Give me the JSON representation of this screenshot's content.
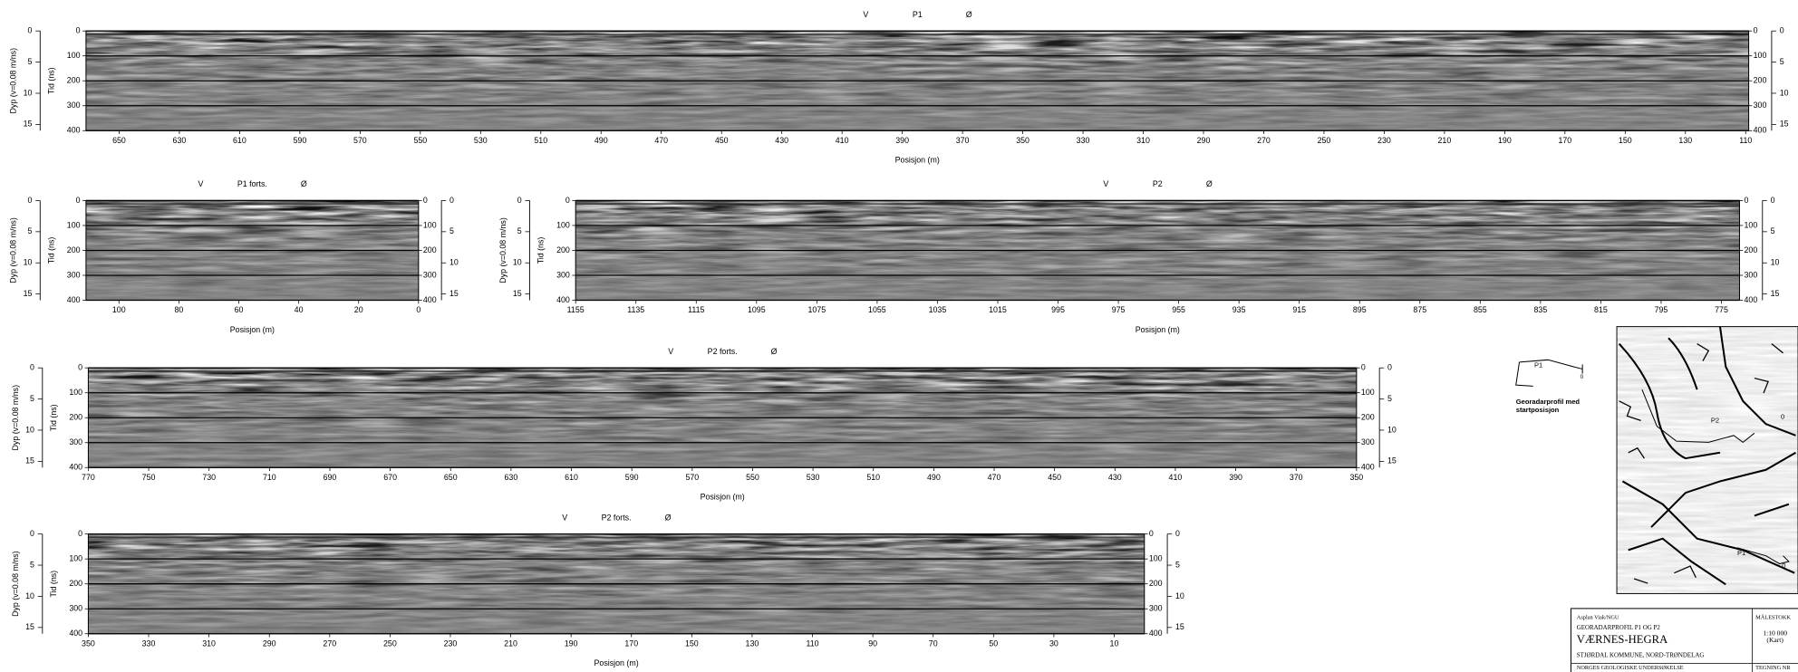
{
  "chart_data": [
    {
      "type": "radargram",
      "left_label": "V",
      "title": "P1",
      "right_label": "Ø",
      "xlabel": "Posisjon (m)",
      "ylabel": "Tid (ns)",
      "y2label": "Dyp (v=0.08 m/ns)",
      "xlim": [
        661,
        109
      ],
      "xticks": [
        650,
        630,
        610,
        590,
        570,
        550,
        530,
        510,
        490,
        470,
        450,
        430,
        410,
        390,
        370,
        350,
        330,
        310,
        290,
        270,
        250,
        230,
        210,
        190,
        170,
        150,
        130,
        110
      ],
      "ylim": [
        400,
        0
      ],
      "yticks": [
        0,
        100,
        200,
        300,
        400
      ],
      "y2lim": [
        16,
        0
      ],
      "y2ticks": [
        0,
        5,
        10,
        15
      ],
      "grid": true
    },
    {
      "type": "radargram",
      "left_label": "V",
      "title": "P1 forts.",
      "right_label": "Ø",
      "xlabel": "Posisjon (m)",
      "ylabel": "Tid (ns)",
      "y2label": "Dyp (v=0.08 m/ns)",
      "xlim": [
        111,
        0
      ],
      "xticks": [
        100,
        80,
        60,
        40,
        20,
        0
      ],
      "ylim": [
        400,
        0
      ],
      "yticks": [
        0,
        100,
        200,
        300,
        400
      ],
      "y2lim": [
        16,
        0
      ],
      "y2ticks": [
        0,
        5,
        10,
        15
      ],
      "grid": true
    },
    {
      "type": "radargram",
      "left_label": "V",
      "title": "P2",
      "right_label": "Ø",
      "xlabel": "Posisjon (m)",
      "ylabel": "Tid (ns)",
      "y2label": "Dyp (v=0.08 m/ns)",
      "xlim": [
        1155,
        769
      ],
      "xticks": [
        1155,
        1135,
        1115,
        1095,
        1075,
        1055,
        1035,
        1015,
        995,
        975,
        955,
        935,
        915,
        895,
        875,
        855,
        835,
        815,
        795,
        775
      ],
      "ylim": [
        400,
        0
      ],
      "yticks": [
        0,
        100,
        200,
        300,
        400
      ],
      "y2lim": [
        16,
        0
      ],
      "y2ticks": [
        0,
        5,
        10,
        15
      ],
      "grid": true
    },
    {
      "type": "radargram",
      "left_label": "V",
      "title": "P2 forts.",
      "right_label": "Ø",
      "xlabel": "Posisjon (m)",
      "ylabel": "Tid (ns)",
      "y2label": "Dyp (v=0.08 m/ns)",
      "xlim": [
        770,
        350
      ],
      "xticks": [
        770,
        750,
        730,
        710,
        690,
        670,
        650,
        630,
        610,
        590,
        570,
        550,
        530,
        510,
        490,
        470,
        450,
        430,
        410,
        390,
        370,
        350
      ],
      "ylim": [
        400,
        0
      ],
      "yticks": [
        0,
        100,
        200,
        300,
        400
      ],
      "y2lim": [
        16,
        0
      ],
      "y2ticks": [
        0,
        5,
        10,
        15
      ],
      "grid": true
    },
    {
      "type": "radargram",
      "left_label": "V",
      "title": "P2 forts.",
      "right_label": "Ø",
      "xlabel": "Posisjon (m)",
      "ylabel": "Tid (ns)",
      "y2label": "Dyp (v=0.08 m/ns)",
      "xlim": [
        350,
        0
      ],
      "xticks": [
        350,
        330,
        310,
        290,
        270,
        250,
        230,
        210,
        190,
        170,
        150,
        130,
        110,
        90,
        70,
        50,
        30,
        10
      ],
      "ylim": [
        400,
        0
      ],
      "yticks": [
        0,
        100,
        200,
        300,
        400
      ],
      "y2lim": [
        16,
        0
      ],
      "y2ticks": [
        0,
        5,
        10,
        15
      ],
      "grid": true
    }
  ],
  "legend_sketch": {
    "profile": "P1",
    "start": "0",
    "caption": [
      "Georadarprofil med",
      "startposisjon"
    ]
  },
  "map": {
    "labels": [
      "P2",
      "P1",
      "0",
      "0"
    ]
  },
  "title_block": {
    "author": "Asplan Viak/NGU",
    "subject": "GEORADARPROFIL P1 OG P2",
    "title": "VÆRNES-HEGRA",
    "place": "STJØRDAL KOMMUNE, NORD-TRØNDELAG",
    "org": "NORGES GEOLOGISKE UNDERSØKELSE",
    "scale_label": "MÅLESTOKK",
    "scale": "1:10 000",
    "scale_note": "(Kart)",
    "drawing": "TEGNING NR"
  }
}
